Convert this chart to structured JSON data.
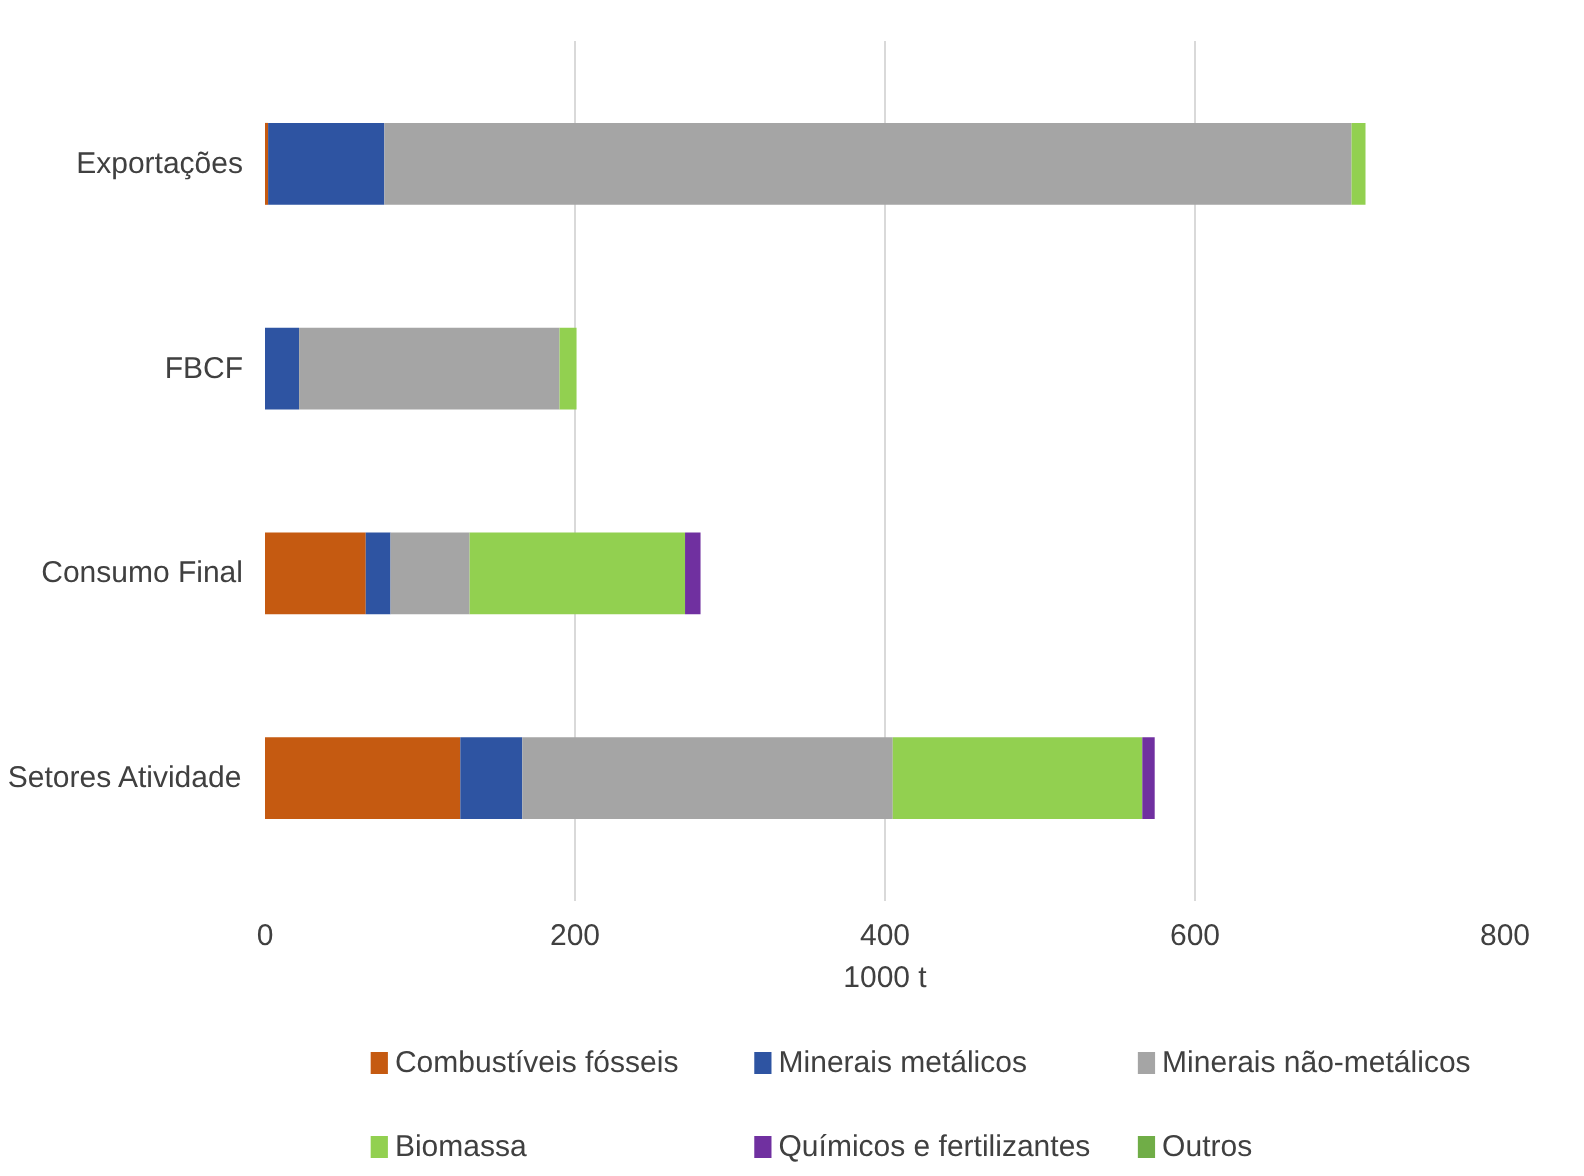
{
  "chart_data": {
    "type": "bar",
    "orientation": "horizontal",
    "stacked": true,
    "categories": [
      "Exportações",
      "FBCF",
      "Consumo Final",
      "Setores Atividade"
    ],
    "series": [
      {
        "name": "Combustíveis fósseis",
        "color": "#c55a11",
        "values": [
          2,
          0,
          65,
          126
        ]
      },
      {
        "name": "Minerais metálicos",
        "color": "#2e54a2",
        "values": [
          75,
          22,
          16,
          40
        ]
      },
      {
        "name": "Minerais não-metálicos",
        "color": "#a5a5a5",
        "values": [
          624,
          168,
          51,
          239
        ]
      },
      {
        "name": "Biomassa",
        "color": "#92d050",
        "values": [
          9,
          11,
          139,
          161
        ]
      },
      {
        "name": "Químicos e fertilizantes",
        "color": "#7030a0",
        "values": [
          0,
          0,
          10,
          8
        ]
      },
      {
        "name": "Outros",
        "color": "#70ad47",
        "values": [
          0,
          0,
          0,
          0
        ]
      }
    ],
    "xlim": [
      0,
      800
    ],
    "xticks": [
      0,
      200,
      400,
      600,
      800
    ],
    "xlabel": "1000 t",
    "grid": "x",
    "legend": "bottom"
  }
}
